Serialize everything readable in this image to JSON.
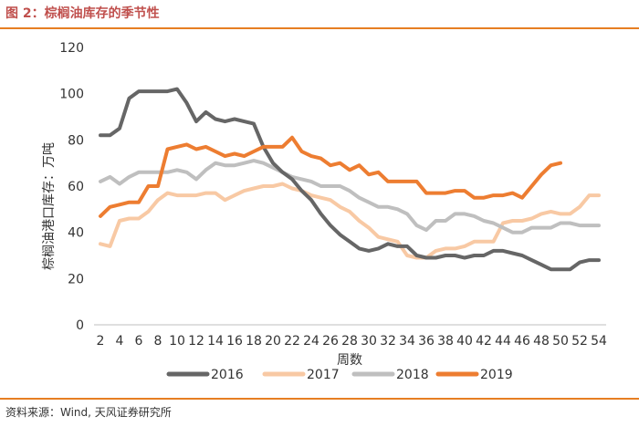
{
  "page": {
    "title": "图 2：棕榈油库存的季节性",
    "source": "资料来源：Wind, 天风证券研究所"
  },
  "chart_data": {
    "type": "line",
    "xlabel": "周数",
    "ylabel": "棕榈油港口库存：万吨",
    "ylim": [
      0,
      120
    ],
    "yticks": [
      0,
      20,
      40,
      60,
      80,
      100,
      120
    ],
    "xlim": [
      2,
      54
    ],
    "xticks": [
      2,
      4,
      6,
      8,
      10,
      12,
      14,
      16,
      18,
      20,
      22,
      24,
      26,
      28,
      30,
      32,
      34,
      36,
      38,
      40,
      42,
      44,
      46,
      48,
      50,
      52,
      54
    ],
    "grid": false,
    "legend_position": "bottom",
    "colors": {
      "2016": "#666666",
      "2017": "#f8c9a4",
      "2018": "#bfbfbf",
      "2019": "#ed7d31"
    },
    "series": [
      {
        "name": "2017",
        "x": [
          2,
          3,
          4,
          5,
          6,
          7,
          8,
          9,
          10,
          11,
          12,
          13,
          14,
          15,
          16,
          17,
          18,
          19,
          20,
          21,
          22,
          23,
          24,
          25,
          26,
          27,
          28,
          29,
          30,
          31,
          32,
          33,
          34,
          35,
          36,
          37,
          38,
          39,
          40,
          41,
          42,
          43,
          44,
          45,
          46,
          47,
          48,
          49,
          50,
          51,
          52,
          53,
          54
        ],
        "values": [
          35,
          34,
          45,
          46,
          46,
          49,
          54,
          57,
          56,
          56,
          56,
          57,
          57,
          54,
          56,
          58,
          59,
          60,
          60,
          61,
          59,
          58,
          56,
          55,
          54,
          51,
          49,
          45,
          42,
          38,
          37,
          36,
          30,
          29,
          29,
          32,
          33,
          33,
          34,
          36,
          36,
          36,
          44,
          45,
          45,
          46,
          48,
          49,
          48,
          48,
          51,
          56,
          56
        ]
      },
      {
        "name": "2018",
        "x": [
          2,
          3,
          4,
          5,
          6,
          7,
          8,
          9,
          10,
          11,
          12,
          13,
          14,
          15,
          16,
          17,
          18,
          19,
          20,
          21,
          22,
          23,
          24,
          25,
          26,
          27,
          28,
          29,
          30,
          31,
          32,
          33,
          34,
          35,
          36,
          37,
          38,
          39,
          40,
          41,
          42,
          43,
          44,
          45,
          46,
          47,
          48,
          49,
          50,
          51,
          52,
          53,
          54
        ],
        "values": [
          62,
          64,
          61,
          64,
          66,
          66,
          66,
          66,
          67,
          66,
          63,
          67,
          70,
          69,
          69,
          70,
          71,
          70,
          68,
          66,
          64,
          63,
          62,
          60,
          60,
          60,
          58,
          55,
          53,
          51,
          51,
          50,
          48,
          43,
          41,
          45,
          45,
          48,
          48,
          47,
          45,
          44,
          42,
          40,
          40,
          42,
          42,
          42,
          44,
          44,
          43,
          43,
          43
        ]
      },
      {
        "name": "2016",
        "x": [
          2,
          3,
          4,
          5,
          6,
          7,
          8,
          9,
          10,
          11,
          12,
          13,
          14,
          15,
          16,
          17,
          18,
          19,
          20,
          21,
          22,
          23,
          24,
          25,
          26,
          27,
          28,
          29,
          30,
          31,
          32,
          33,
          34,
          35,
          36,
          37,
          38,
          39,
          40,
          41,
          42,
          43,
          44,
          45,
          46,
          47,
          48,
          49,
          50,
          51,
          52,
          53,
          54
        ],
        "values": [
          82,
          82,
          85,
          98,
          101,
          101,
          101,
          101,
          102,
          96,
          88,
          92,
          89,
          88,
          89,
          88,
          87,
          77,
          70,
          66,
          63,
          58,
          54,
          48,
          43,
          39,
          36,
          33,
          32,
          33,
          35,
          34,
          34,
          30,
          29,
          29,
          30,
          30,
          29,
          30,
          30,
          32,
          32,
          31,
          30,
          28,
          26,
          24,
          24,
          24,
          27,
          28,
          28
        ]
      },
      {
        "name": "2019",
        "x": [
          2,
          3,
          4,
          5,
          6,
          7,
          8,
          9,
          10,
          11,
          12,
          13,
          14,
          15,
          16,
          17,
          18,
          19,
          20,
          21,
          22,
          23,
          24,
          25,
          26,
          27,
          28,
          29,
          30,
          31,
          32,
          33,
          34,
          35,
          36,
          37,
          38,
          39,
          40,
          41,
          42,
          43,
          44,
          45,
          46,
          47,
          48,
          49,
          50
        ],
        "values": [
          47,
          51,
          52,
          53,
          53,
          60,
          60,
          76,
          77,
          78,
          76,
          77,
          75,
          73,
          74,
          73,
          75,
          77,
          77,
          77,
          81,
          75,
          73,
          72,
          69,
          70,
          67,
          69,
          65,
          66,
          62,
          62,
          62,
          62,
          57,
          57,
          57,
          58,
          58,
          55,
          55,
          56,
          56,
          57,
          55,
          60,
          65,
          69,
          70
        ]
      }
    ],
    "legend_order": [
      "2016",
      "2017",
      "2018",
      "2019"
    ]
  }
}
